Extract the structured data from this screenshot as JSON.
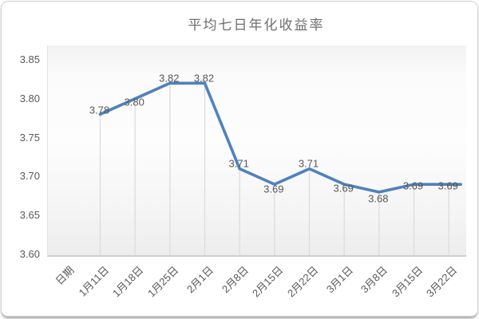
{
  "chart_data": {
    "type": "line",
    "title": "平均七日年化收益率",
    "categories": [
      "日期",
      "1月11日",
      "1月18日",
      "1月25日",
      "2月1日",
      "2月8日",
      "2月15日",
      "2月22日",
      "3月1日",
      "3月8日",
      "3月15日",
      "3月22日"
    ],
    "values": [
      null,
      3.78,
      3.8,
      3.82,
      3.82,
      3.71,
      3.69,
      3.71,
      3.69,
      3.68,
      3.69,
      3.69
    ],
    "data_labels": [
      "3.78",
      "3.80",
      "3.82",
      "3.82",
      "3.71",
      "3.69",
      "3.71",
      "3.69",
      "3.68",
      "3.69",
      "3.69"
    ],
    "xlabel": "",
    "ylabel": "",
    "ylim": [
      3.6,
      3.85
    ],
    "yticks": [
      "3.85",
      "3.80",
      "3.75",
      "3.70",
      "3.65",
      "3.60"
    ],
    "grid": "vertical-droplines-only",
    "legend": "none",
    "colors": {
      "line": "#4f81bd",
      "dropline": "#dcdcdc",
      "axis": "#cfcfcf",
      "text": "#595959",
      "title": "#6f6f6f"
    }
  }
}
